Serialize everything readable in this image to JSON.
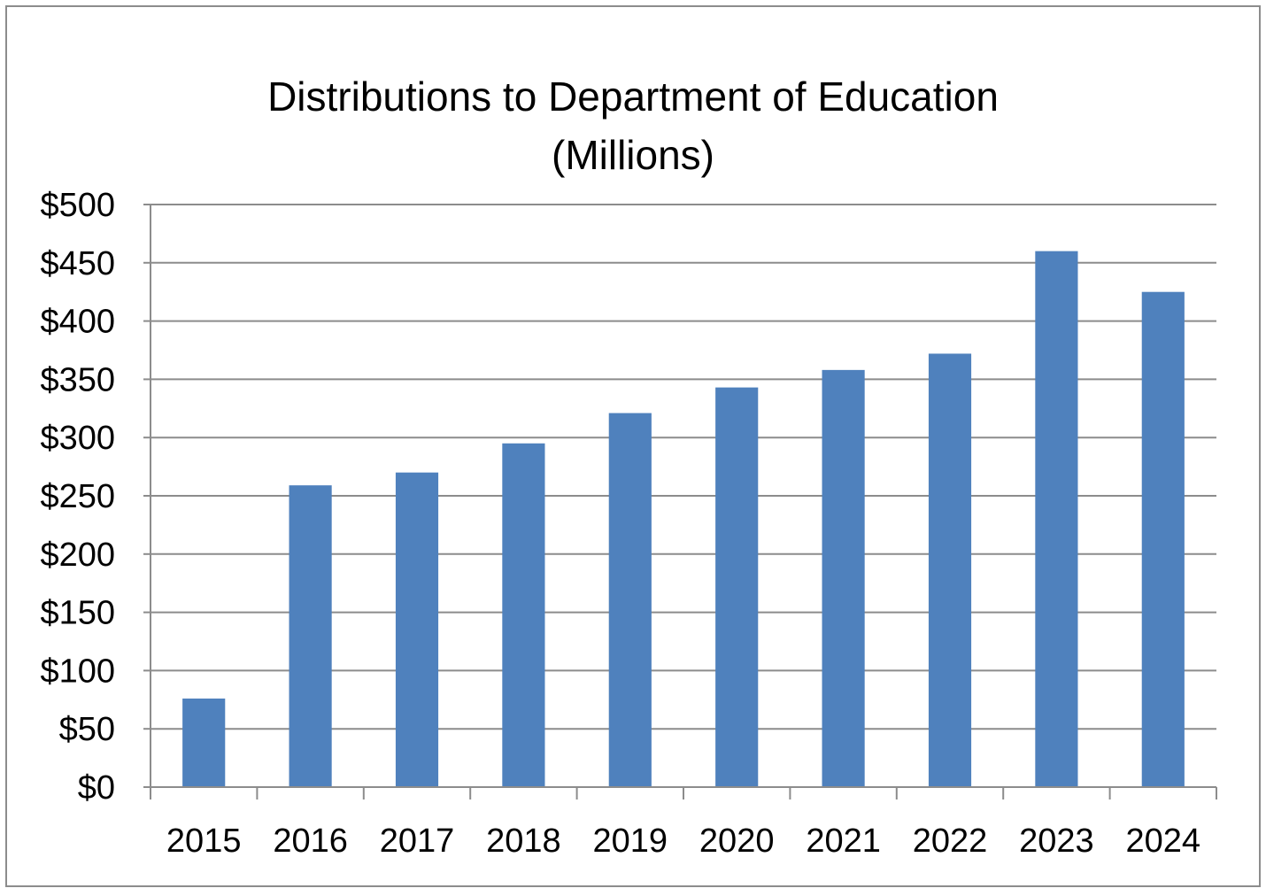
{
  "chart_data": {
    "type": "bar",
    "title": "Distributions to Department of Education",
    "subtitle": "(Millions)",
    "categories": [
      "2015",
      "2016",
      "2017",
      "2018",
      "2019",
      "2020",
      "2021",
      "2022",
      "2023",
      "2024"
    ],
    "values": [
      76,
      259,
      270,
      295,
      321,
      343,
      358,
      372,
      460,
      425
    ],
    "ylim": [
      0,
      500
    ],
    "y_ticks": [
      0,
      50,
      100,
      150,
      200,
      250,
      300,
      350,
      400,
      450,
      500
    ],
    "y_tick_labels": [
      "$0",
      "$50",
      "$100",
      "$150",
      "$200",
      "$250",
      "$300",
      "$350",
      "$400",
      "$450",
      "$500"
    ],
    "xlabel": "",
    "ylabel": "",
    "grid": true,
    "legend": "none",
    "colors": {
      "bar": "#4f81bd",
      "grid": "#8c8c8c",
      "axis": "#8c8c8c",
      "border": "#8c8c8c"
    }
  }
}
